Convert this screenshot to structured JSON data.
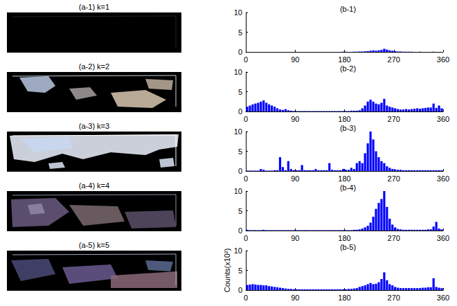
{
  "images": [
    {
      "title": "(a-1) k=1"
    },
    {
      "title": "(a-2) k=2"
    },
    {
      "title": "(a-3) k=3"
    },
    {
      "title": "(a-4) k=4"
    },
    {
      "title": "(a-5) k=5"
    }
  ],
  "chart_data": [
    {
      "type": "histogram",
      "title": "(b-1)",
      "color": "#0000ff",
      "grid": false,
      "xlim": [
        0,
        360
      ],
      "xticks": [
        0,
        90,
        180,
        270,
        360
      ],
      "ylim": [
        0,
        10
      ],
      "yticks": [
        0,
        5,
        10
      ],
      "bins": [
        0,
        5,
        10,
        15,
        20,
        25,
        30,
        35,
        40,
        45,
        50,
        55,
        60,
        65,
        70,
        75,
        80,
        85,
        90,
        95,
        100,
        105,
        110,
        115,
        120,
        125,
        130,
        135,
        140,
        145,
        150,
        155,
        160,
        165,
        170,
        175,
        180,
        185,
        190,
        195,
        200,
        205,
        210,
        215,
        220,
        225,
        230,
        235,
        240,
        245,
        250,
        255,
        260,
        265,
        270,
        275,
        280,
        285,
        290,
        295,
        300,
        305,
        310,
        315,
        320,
        325,
        330,
        335,
        340,
        345,
        350,
        355,
        360
      ],
      "counts": [
        0,
        0,
        0,
        0,
        0,
        0,
        0,
        0,
        0,
        0,
        0,
        0,
        0,
        0,
        0,
        0,
        0,
        0,
        0,
        0,
        0,
        0,
        0,
        0,
        0,
        0,
        0,
        0,
        0,
        0,
        0,
        0,
        0,
        0,
        0,
        0.05,
        0.05,
        0,
        0,
        0.05,
        0.05,
        0.1,
        0.1,
        0.15,
        0.2,
        0.3,
        0.4,
        0.3,
        0.4,
        0.5,
        0.8,
        0.6,
        0.4,
        0.3,
        0.2,
        0.1,
        0.1,
        0.05,
        0.05,
        0.05,
        0.05,
        0,
        0,
        0.05,
        0,
        0,
        0,
        0,
        0.05,
        0,
        0,
        0
      ]
    },
    {
      "type": "histogram",
      "title": "(b-2)",
      "color": "#0000ff",
      "grid": false,
      "xlim": [
        0,
        360
      ],
      "xticks": [
        0,
        90,
        180,
        270,
        360
      ],
      "ylim": [
        0,
        10
      ],
      "yticks": [
        0,
        5,
        10
      ],
      "bins": [
        0,
        5,
        10,
        15,
        20,
        25,
        30,
        35,
        40,
        45,
        50,
        55,
        60,
        65,
        70,
        75,
        80,
        85,
        90,
        95,
        100,
        105,
        110,
        115,
        120,
        125,
        130,
        135,
        140,
        145,
        150,
        155,
        160,
        165,
        170,
        175,
        180,
        185,
        190,
        195,
        200,
        205,
        210,
        215,
        220,
        225,
        230,
        235,
        240,
        245,
        250,
        255,
        260,
        265,
        270,
        275,
        280,
        285,
        290,
        295,
        300,
        305,
        310,
        315,
        320,
        325,
        330,
        335,
        340,
        345,
        350,
        355,
        360
      ],
      "counts": [
        1.2,
        1.5,
        1.8,
        2.0,
        2.2,
        2.5,
        2.8,
        2.2,
        1.8,
        1.5,
        1.2,
        0.8,
        0.5,
        0.4,
        0.6,
        0.3,
        0.2,
        0.1,
        0.1,
        0.1,
        0.1,
        0.1,
        0.1,
        0.1,
        0.1,
        0.1,
        0.1,
        0.1,
        0.1,
        0.1,
        0.1,
        0.1,
        0.1,
        0.1,
        0.1,
        0.1,
        0.1,
        0.1,
        0.2,
        0.2,
        0.2,
        0.3,
        0.8,
        1.5,
        2.5,
        3.0,
        2.5,
        2.0,
        1.8,
        2.2,
        3.2,
        1.5,
        1.2,
        1.0,
        0.8,
        0.6,
        0.5,
        0.5,
        0.6,
        0.5,
        0.6,
        0.7,
        0.8,
        0.7,
        0.8,
        0.9,
        1.0,
        1.0,
        2.0,
        0.9,
        1.5,
        0.8
      ]
    },
    {
      "type": "histogram",
      "title": "(b-3)",
      "color": "#0000ff",
      "grid": false,
      "xlim": [
        0,
        360
      ],
      "xticks": [
        0,
        90,
        180,
        270,
        360
      ],
      "ylim": [
        0,
        10
      ],
      "yticks": [
        0,
        5,
        10
      ],
      "bins": [
        0,
        5,
        10,
        15,
        20,
        25,
        30,
        35,
        40,
        45,
        50,
        55,
        60,
        65,
        70,
        75,
        80,
        85,
        90,
        95,
        100,
        105,
        110,
        115,
        120,
        125,
        130,
        135,
        140,
        145,
        150,
        155,
        160,
        165,
        170,
        175,
        180,
        185,
        190,
        195,
        200,
        205,
        210,
        215,
        220,
        225,
        230,
        235,
        240,
        245,
        250,
        255,
        260,
        265,
        270,
        275,
        280,
        285,
        290,
        295,
        300,
        305,
        310,
        315,
        320,
        325,
        330,
        335,
        340,
        345,
        350,
        355,
        360
      ],
      "counts": [
        0.1,
        0.1,
        0.1,
        0.1,
        0.1,
        0.5,
        0.3,
        0.1,
        0.1,
        0.1,
        0.2,
        0.2,
        3.5,
        1.0,
        0.2,
        2.5,
        0.5,
        0.2,
        0.2,
        0.2,
        1.5,
        0.2,
        0.2,
        0.2,
        0.2,
        0.5,
        0.2,
        0.2,
        0.2,
        0.2,
        2.0,
        0.3,
        0.2,
        0.2,
        0.2,
        0.5,
        0.3,
        0.3,
        0.8,
        0.5,
        2.0,
        2.5,
        2.0,
        4.5,
        7.0,
        10,
        8.0,
        5.0,
        3.5,
        2.5,
        2.0,
        1.2,
        0.8,
        0.5,
        0.4,
        0.3,
        0.3,
        0.2,
        0.2,
        0.2,
        0.2,
        0.2,
        0.2,
        0.2,
        0.2,
        0.2,
        0.2,
        0.2,
        0.2,
        0.2,
        0.2,
        0.2
      ]
    },
    {
      "type": "histogram",
      "title": "(b-4)",
      "color": "#0000ff",
      "grid": false,
      "xlim": [
        0,
        360
      ],
      "xticks": [
        0,
        90,
        180,
        270,
        360
      ],
      "ylim": [
        0,
        10
      ],
      "yticks": [
        0,
        5,
        10
      ],
      "bins": [
        0,
        5,
        10,
        15,
        20,
        25,
        30,
        35,
        40,
        45,
        50,
        55,
        60,
        65,
        70,
        75,
        80,
        85,
        90,
        95,
        100,
        105,
        110,
        115,
        120,
        125,
        130,
        135,
        140,
        145,
        150,
        155,
        160,
        165,
        170,
        175,
        180,
        185,
        190,
        195,
        200,
        205,
        210,
        215,
        220,
        225,
        230,
        235,
        240,
        245,
        250,
        255,
        260,
        265,
        270,
        275,
        280,
        285,
        290,
        295,
        300,
        305,
        310,
        315,
        320,
        325,
        330,
        335,
        340,
        345,
        350,
        355,
        360
      ],
      "counts": [
        0.2,
        0.1,
        0.1,
        0.1,
        0.1,
        0.1,
        0.2,
        0.1,
        0.1,
        0.1,
        0.1,
        0.1,
        0.1,
        0.1,
        0.1,
        0.1,
        0.1,
        0.1,
        0.1,
        0.1,
        0.1,
        0.1,
        0.1,
        0.1,
        0.1,
        0.1,
        0.1,
        0.1,
        0.1,
        0.1,
        0.1,
        0.1,
        0.1,
        0.1,
        0.1,
        0.1,
        0.1,
        0.1,
        0.1,
        0.2,
        0.2,
        0.3,
        0.5,
        0.8,
        1.2,
        2.0,
        3.5,
        5.5,
        7.0,
        8.0,
        10,
        6.0,
        3.0,
        1.5,
        0.8,
        0.4,
        0.3,
        0.2,
        0.2,
        0.2,
        0.2,
        0.2,
        0.2,
        0.2,
        0.2,
        0.2,
        0.3,
        0.3,
        1.0,
        2.2,
        0.5,
        0.3
      ]
    },
    {
      "type": "histogram",
      "title": "(b-5)",
      "y_label": "Counts(x10²)",
      "color": "#0000ff",
      "grid": false,
      "xlim": [
        0,
        360
      ],
      "xticks": [
        0,
        90,
        180,
        270,
        360
      ],
      "ylim": [
        0,
        10
      ],
      "yticks": [
        0,
        5,
        10
      ],
      "bins": [
        0,
        5,
        10,
        15,
        20,
        25,
        30,
        35,
        40,
        45,
        50,
        55,
        60,
        65,
        70,
        75,
        80,
        85,
        90,
        95,
        100,
        105,
        110,
        115,
        120,
        125,
        130,
        135,
        140,
        145,
        150,
        155,
        160,
        165,
        170,
        175,
        180,
        185,
        190,
        195,
        200,
        205,
        210,
        215,
        220,
        225,
        230,
        235,
        240,
        245,
        250,
        255,
        260,
        265,
        270,
        275,
        280,
        285,
        290,
        295,
        300,
        305,
        310,
        315,
        320,
        325,
        330,
        335,
        340,
        345,
        350,
        355,
        360
      ],
      "counts": [
        1.3,
        1.4,
        1.5,
        1.4,
        1.3,
        1.3,
        1.2,
        1.2,
        1.0,
        0.9,
        0.8,
        0.7,
        0.6,
        0.5,
        0.4,
        0.3,
        0.3,
        0.2,
        0.2,
        0.2,
        0.2,
        0.2,
        0.2,
        0.2,
        0.2,
        0.2,
        0.2,
        0.2,
        0.2,
        0.2,
        0.2,
        0.2,
        0.2,
        0.2,
        0.2,
        0.2,
        0.2,
        0.3,
        0.3,
        0.4,
        0.5,
        0.8,
        1.0,
        1.2,
        1.5,
        1.8,
        1.5,
        1.6,
        2.0,
        2.8,
        4.5,
        2.5,
        1.5,
        1.2,
        0.8,
        0.6,
        0.5,
        0.5,
        0.5,
        0.5,
        0.5,
        0.5,
        0.5,
        0.5,
        0.6,
        0.6,
        0.7,
        0.7,
        3.0,
        0.8,
        0.6,
        0.5
      ]
    }
  ]
}
